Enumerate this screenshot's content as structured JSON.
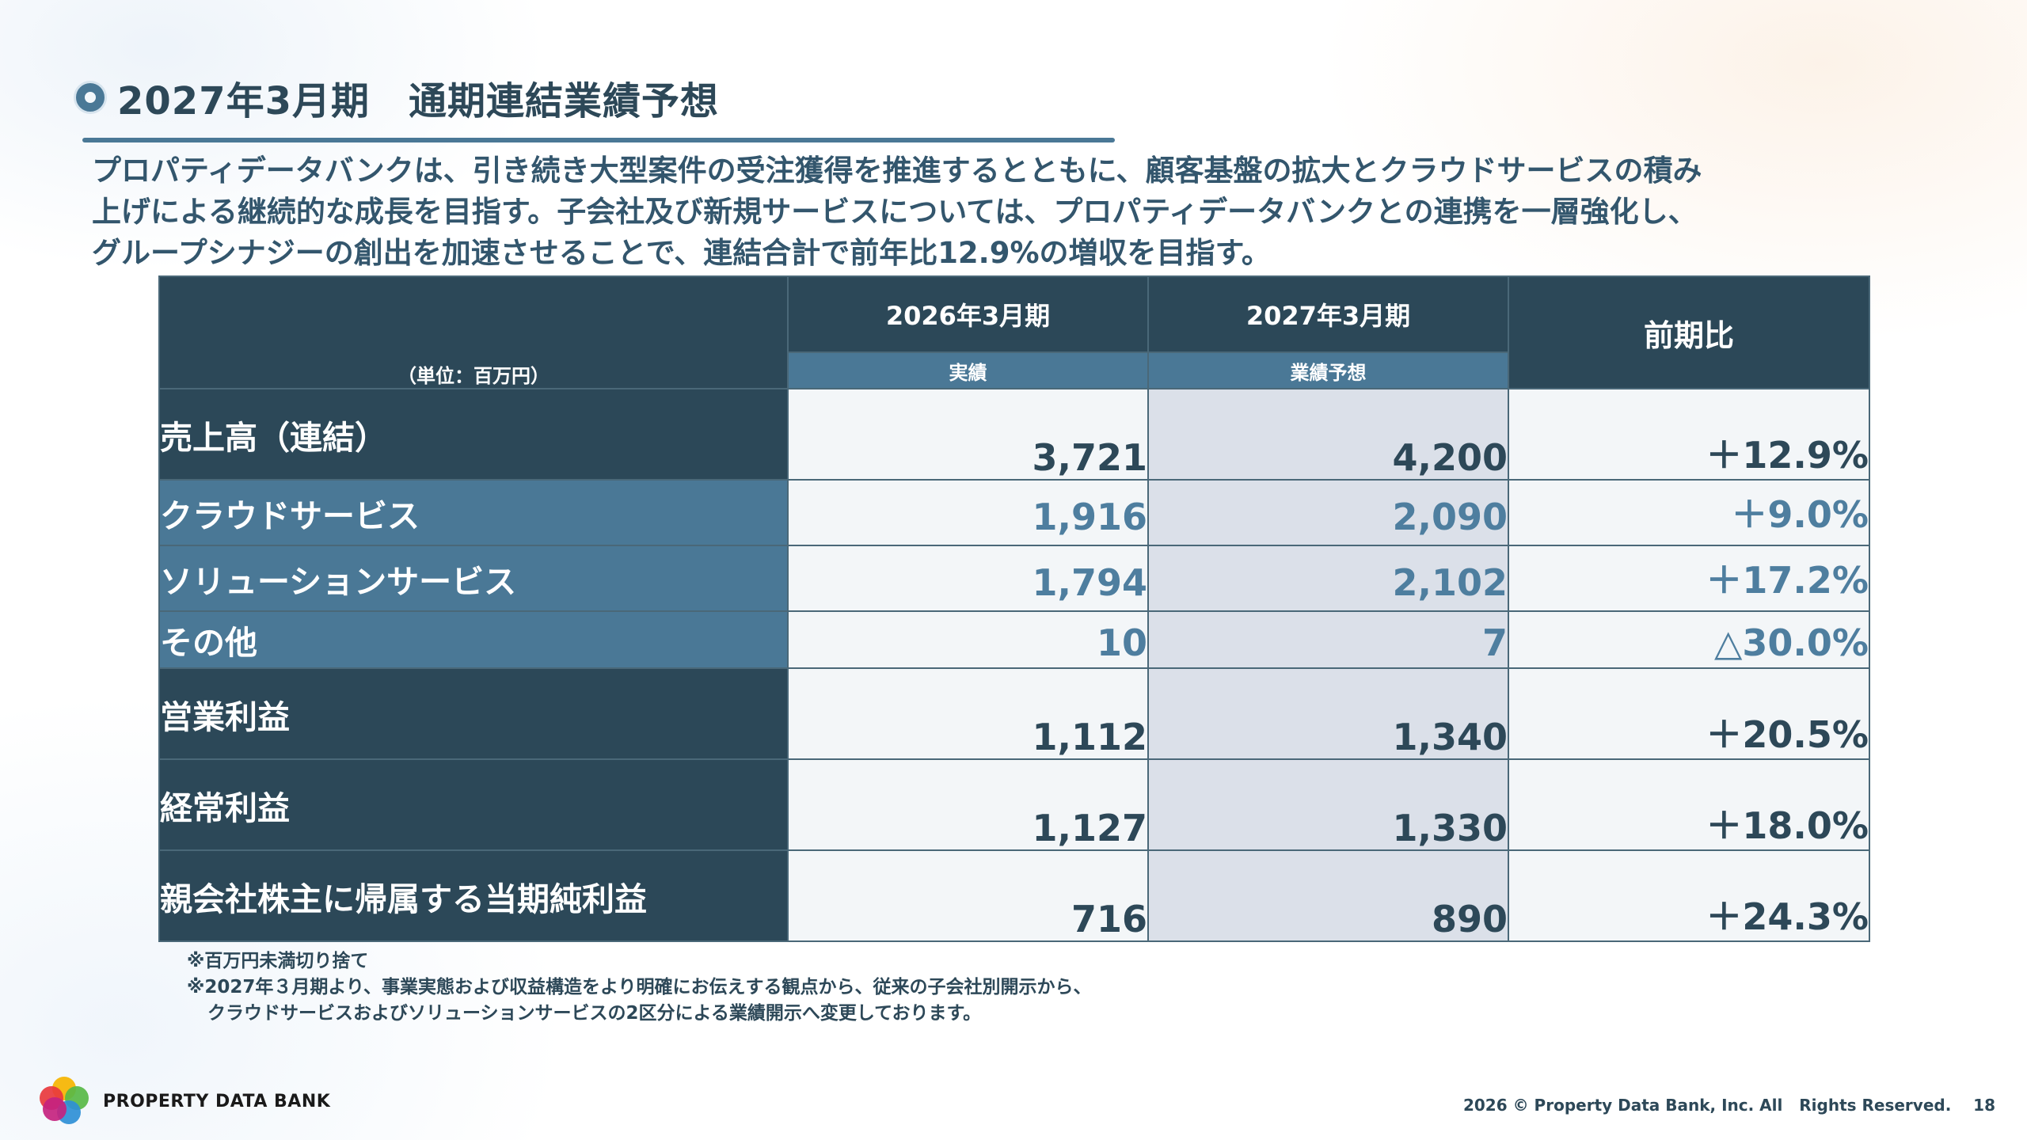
{
  "title": "2027年3月期　通期連結業績予想",
  "lead": [
    "プロパティデータバンクは、引き続き大型案件の受注獲得を推進するとともに、顧客基盤の拡大とクラウドサービスの積み",
    "上げによる継続的な成長を目指す。子会社及び新規サービスについては、プロパティデータバンクとの連携を一層強化し、",
    "グループシナジーの創出を加速させることで、連結合計で前年比12.9%の増収を目指す。"
  ],
  "table": {
    "unit": "（単位：百万円）",
    "col_2026": "2026年3月期",
    "col_2026_sub": "実績",
    "col_2027": "2027年3月期",
    "col_2027_sub": "業績予想",
    "col_ratio": "前期比",
    "rows": [
      {
        "label": "売上高（連結）",
        "v2026": "3,721",
        "v2027": "4,200",
        "ratio": "＋12.9%"
      },
      {
        "label": "クラウドサービス",
        "v2026": "1,916",
        "v2027": "2,090",
        "ratio": "＋9.0%"
      },
      {
        "label": "ソリューションサービス",
        "v2026": "1,794",
        "v2027": "2,102",
        "ratio": "＋17.2%"
      },
      {
        "label": "その他",
        "v2026": "10",
        "v2027": "7",
        "ratio": "△30.0%"
      },
      {
        "label": "営業利益",
        "v2026": "1,112",
        "v2027": "1,340",
        "ratio": "＋20.5%"
      },
      {
        "label": "経常利益",
        "v2026": "1,127",
        "v2027": "1,330",
        "ratio": "＋18.0%"
      },
      {
        "label": "親会社株主に帰属する当期純利益",
        "v2026": "716",
        "v2027": "890",
        "ratio": "＋24.3%"
      }
    ]
  },
  "notes": [
    "※百万円未満切り捨て",
    "※2027年３月期より、事業実態および収益構造をより明確にお伝えする観点から、従来の子会社別開示から、",
    "クラウドサービスおよびソリューションサービスの2区分による業績開示へ変更しております。"
  ],
  "logo_text": "PROPERTY DATA BANK",
  "footer": "2026 © Property Data Bank, Inc. All   Rights Reserved.    18",
  "colors": {
    "dark": "#2c4858",
    "mid": "#4a7896",
    "forecast_bg": "#dbe0e9"
  }
}
